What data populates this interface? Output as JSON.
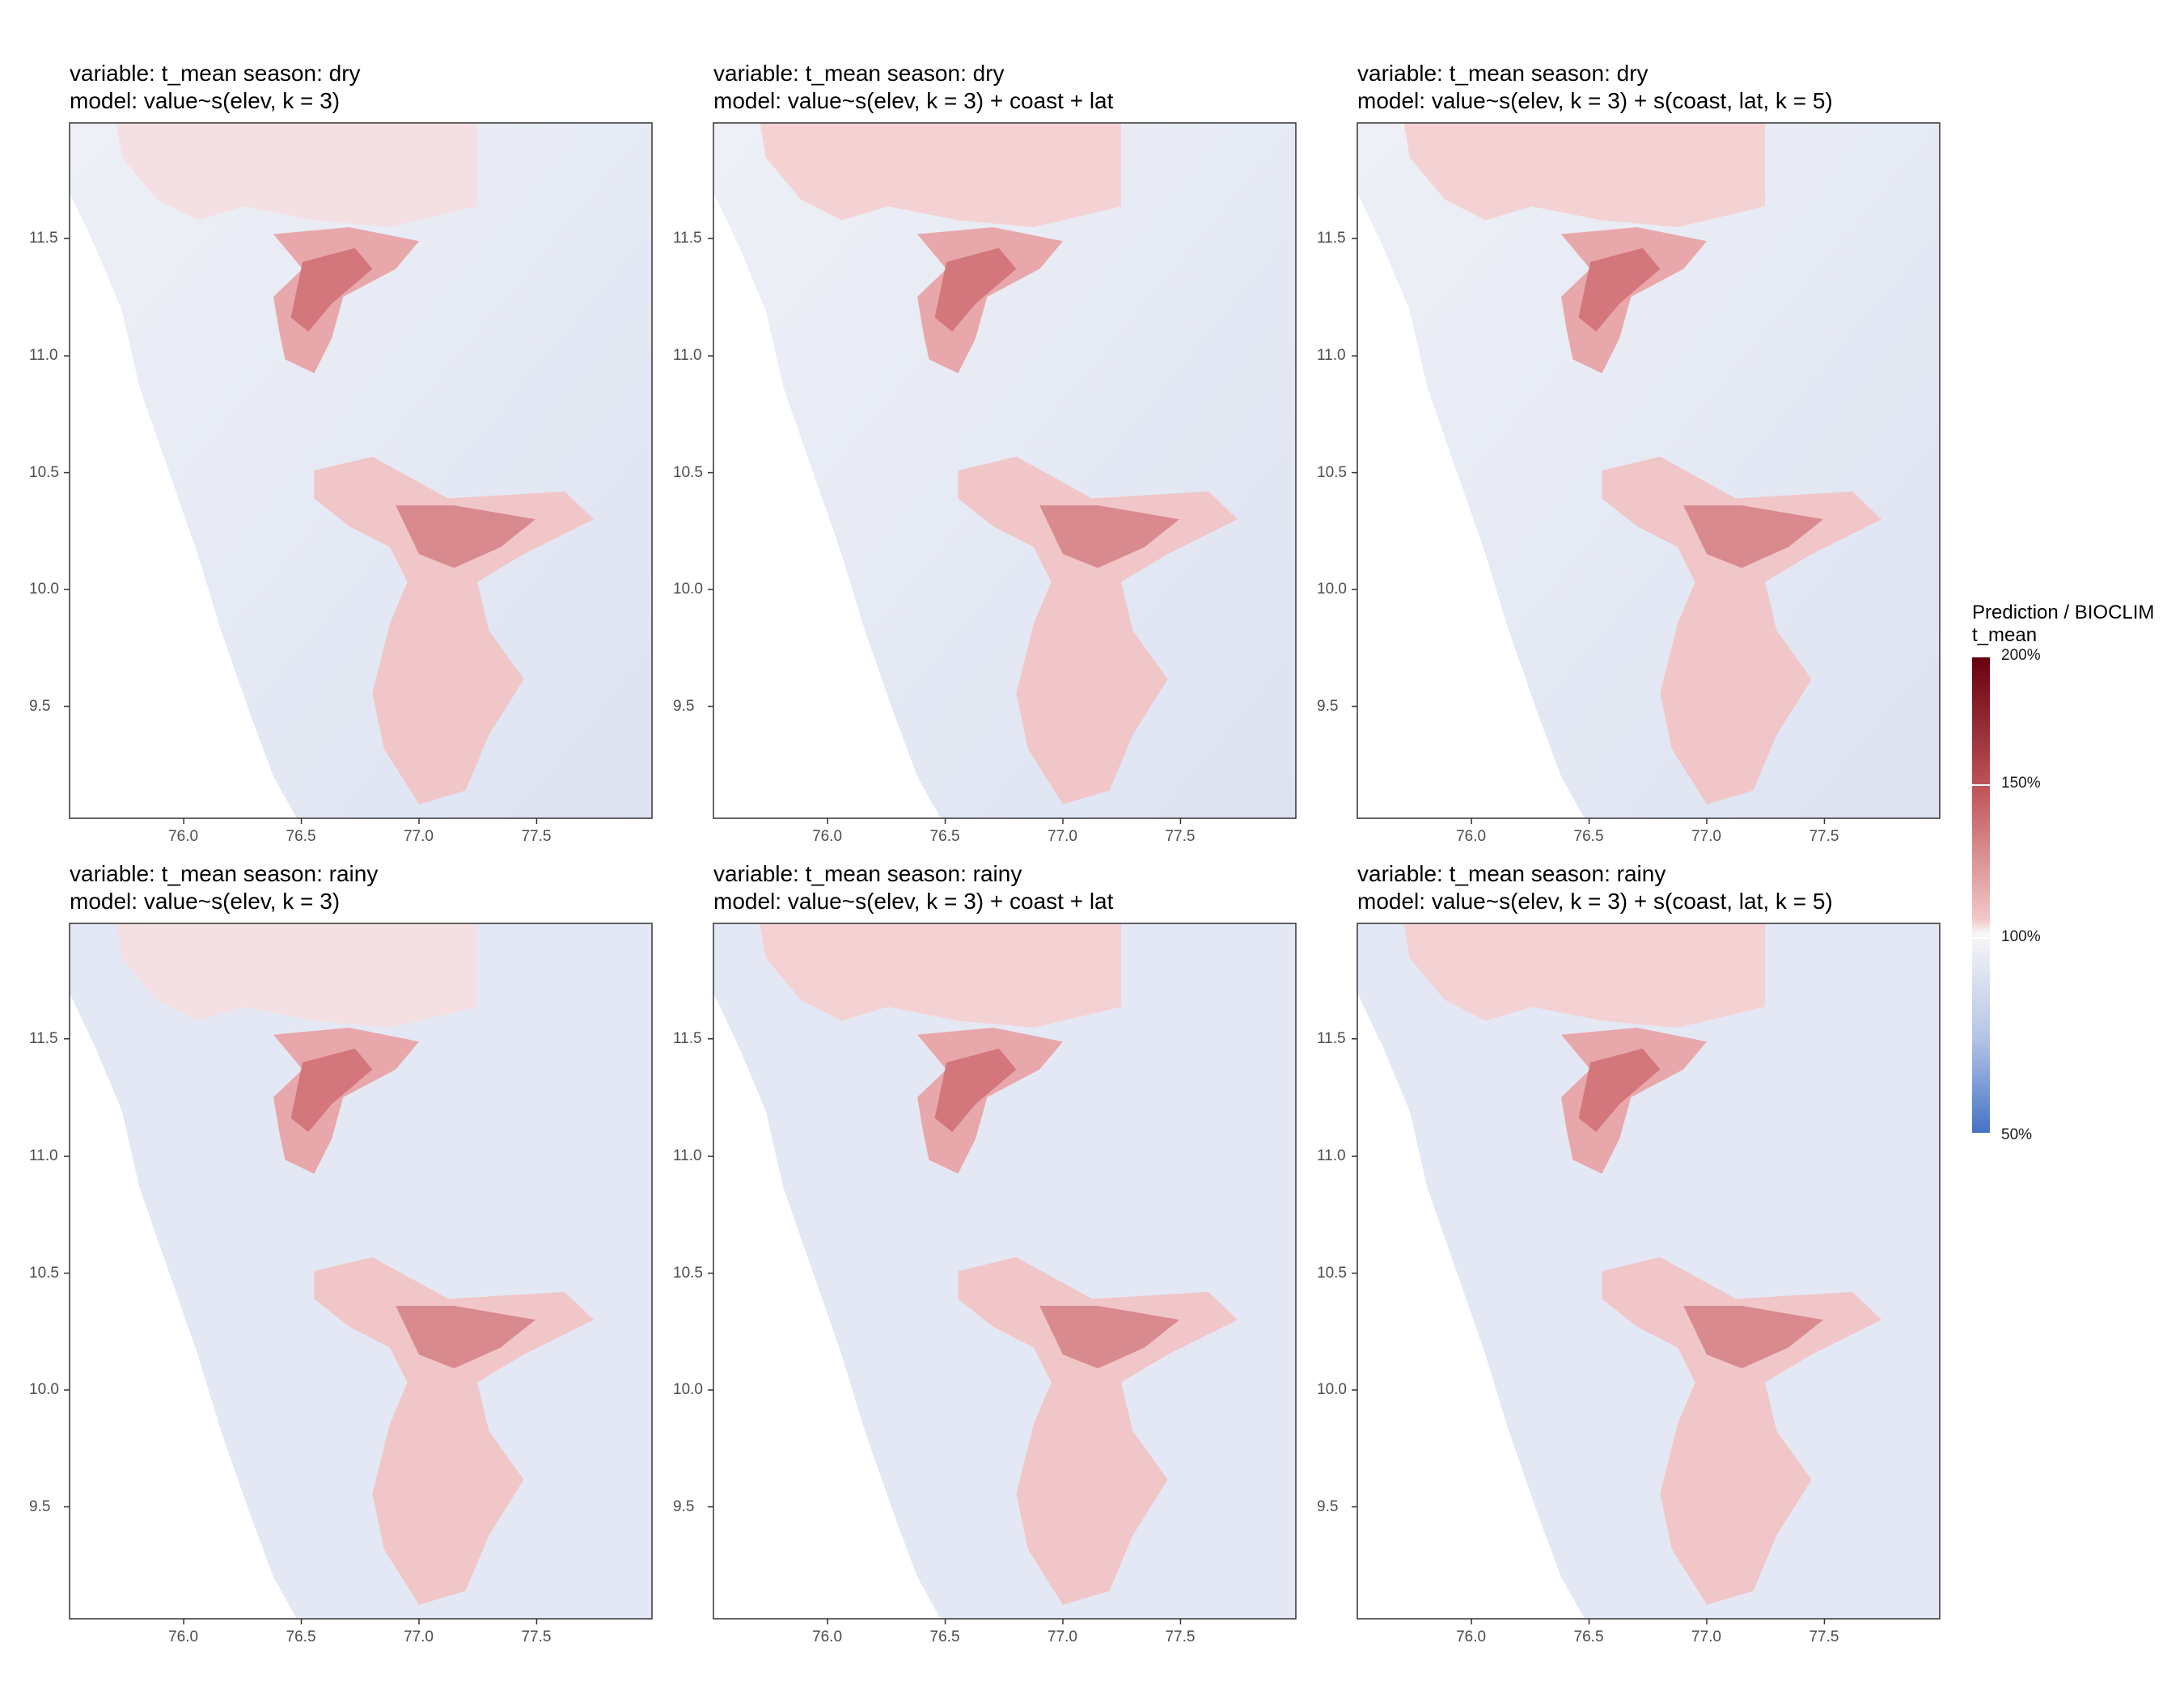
{
  "figure": {
    "legend": {
      "title_line1": "Prediction / BIOCLIM",
      "title_line2": "t_mean",
      "labels": [
        "200%",
        "150%",
        "100%",
        "50%"
      ],
      "colors": {
        "low": "#4472c4",
        "mid": "#f7f7f7",
        "high": "#67000d"
      }
    },
    "x_ticks": [
      "76.0",
      "76.5",
      "77.0",
      "77.5"
    ],
    "y_ticks": [
      "11.5",
      "11.0",
      "10.5",
      "10.0",
      "9.5"
    ],
    "panels": [
      {
        "line1": "variable: t_mean season: dry",
        "line2": "model: value~s(elev, k = 3)"
      },
      {
        "line1": "variable: t_mean season: dry",
        "line2": "model: value~s(elev, k = 3) + coast + lat"
      },
      {
        "line1": "variable: t_mean season: dry",
        "line2": "model: value~s(elev, k = 3) + s(coast, lat, k = 5)"
      },
      {
        "line1": "variable: t_mean season: rainy",
        "line2": "model: value~s(elev, k = 3)"
      },
      {
        "line1": "variable: t_mean season: rainy",
        "line2": "model: value~s(elev, k = 3) + coast + lat"
      },
      {
        "line1": "variable: t_mean season: rainy",
        "line2": "model: value~s(elev, k = 3) + s(coast, lat, k = 5)"
      }
    ]
  }
}
